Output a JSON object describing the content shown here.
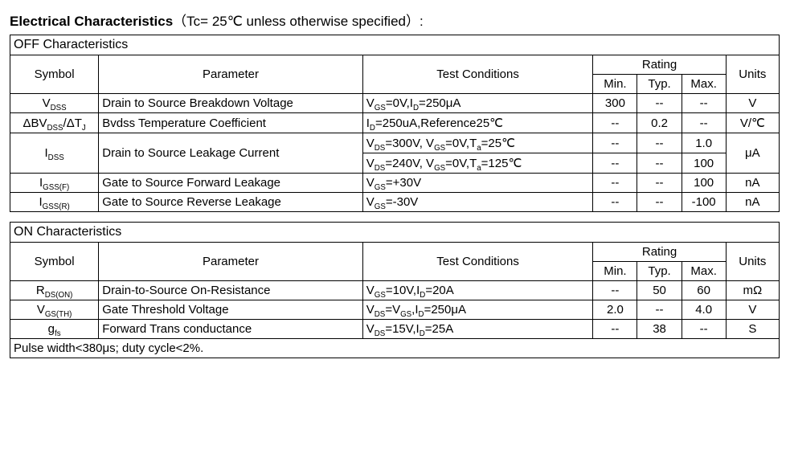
{
  "title_strong": "Electrical Characteristics",
  "title_rest": "（Tc= 25℃  unless otherwise specified）:",
  "headers": {
    "symbol": "Symbol",
    "parameter": "Parameter",
    "conditions": "Test Conditions",
    "rating": "Rating",
    "min": "Min.",
    "typ": "Typ.",
    "max": "Max.",
    "units": "Units"
  },
  "off": {
    "section": "OFF Characteristics",
    "rows": {
      "vdss": {
        "sym_pre": "V",
        "sym_sub": "DSS",
        "param": "Drain to Source Breakdown Voltage",
        "cond_html": "V<sub>GS</sub>=0V,I<sub>D</sub>=250μA",
        "min": "300",
        "typ": "--",
        "max": "--",
        "unit": "V"
      },
      "dbvdss": {
        "sym_html": "ΔBV<sub>DSS</sub>/ΔT<sub>J</sub>",
        "param": "Bvdss Temperature Coefficient",
        "cond_html": "I<sub>D</sub>=250uA,Reference25℃",
        "min": "--",
        "typ": "0.2",
        "max": "--",
        "unit": "V/℃"
      },
      "idss": {
        "sym_pre": "I",
        "sym_sub": "DSS",
        "param": "Drain to Source Leakage Current",
        "cond1_html": "V<sub>DS</sub>=300V, V<sub>GS</sub>=0V,T<sub>a</sub>=25℃",
        "min1": "--",
        "typ1": "--",
        "max1": "1.0",
        "cond2_html": "V<sub>DS</sub>=240V, V<sub>GS</sub>=0V,T<sub>a</sub>=125℃",
        "min2": "--",
        "typ2": "--",
        "max2": "100",
        "unit": "μA"
      },
      "igssf": {
        "sym_pre": "I",
        "sym_sub": "GSS(F)",
        "param": "Gate to Source Forward Leakage",
        "cond_html": "V<sub>GS</sub>=+30V",
        "min": "--",
        "typ": "--",
        "max": "100",
        "unit": "nA"
      },
      "igssr": {
        "sym_pre": "I",
        "sym_sub": "GSS(R)",
        "param": "Gate to Source Reverse Leakage",
        "cond_html": "V<sub>GS</sub>=-30V",
        "min": "--",
        "typ": "--",
        "max": "-100",
        "unit": "nA"
      }
    }
  },
  "on": {
    "section": "ON Characteristics",
    "rows": {
      "rdson": {
        "sym_pre": "R",
        "sym_sub": "DS(ON)",
        "param": "Drain-to-Source On-Resistance",
        "cond_html": "V<sub>GS</sub>=10V,I<sub>D</sub>=20A",
        "min": "--",
        "typ": "50",
        "max": "60",
        "unit": "mΩ"
      },
      "vgsth": {
        "sym_pre": "V",
        "sym_sub": "GS(TH)",
        "param": "Gate Threshold Voltage",
        "cond_html": "V<sub>DS</sub>=V<sub>GS</sub>,I<sub>D</sub>=250μA",
        "min": "2.0",
        "typ": "--",
        "max": "4.0",
        "unit": "V"
      },
      "gfs": {
        "sym_pre": "g",
        "sym_sub": "fs",
        "param": "Forward Trans conductance",
        "cond_html": "V<sub>DS</sub>=15V,I<sub>D</sub>=25A",
        "min": "--",
        "typ": "38",
        "max": "--",
        "unit": "S"
      }
    },
    "note": "Pulse width<380μs; duty cycle<2%."
  }
}
